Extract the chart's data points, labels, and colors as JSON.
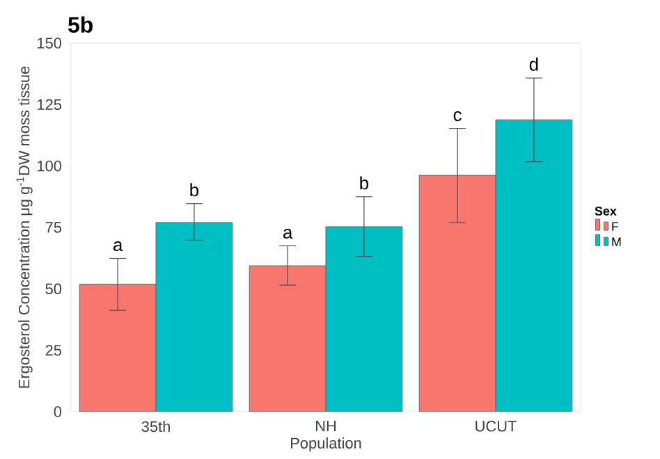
{
  "chart_data": {
    "type": "bar",
    "title": "5b",
    "xlabel": "Population",
    "ylabel": "Ergosterol Concentration μg g$^{-1}$DW moss tissue",
    "legend_title": "Sex",
    "legend": "right",
    "grid": false,
    "categories": [
      "35th",
      "NH",
      "UCUT"
    ],
    "ylim": [
      0,
      150
    ],
    "yticks": [
      0,
      25,
      50,
      75,
      100,
      125,
      150
    ],
    "series": [
      {
        "name": "F",
        "color": "#f8766d",
        "values": [
          51.9,
          59.4,
          96.2
        ],
        "errors": [
          [
            41.3,
            62.4
          ],
          [
            51.5,
            67.5
          ],
          [
            77,
            115.3
          ]
        ],
        "value_labels": [
          "a",
          "a",
          "c"
        ]
      },
      {
        "name": "M",
        "color": "#00bfc4",
        "values": [
          77,
          75.3,
          118.8
        ],
        "errors": [
          [
            69.8,
            84.7
          ],
          [
            63.2,
            87.5
          ],
          [
            101.7,
            135.8
          ]
        ],
        "value_labels": [
          "b",
          "b",
          "d"
        ]
      }
    ]
  }
}
